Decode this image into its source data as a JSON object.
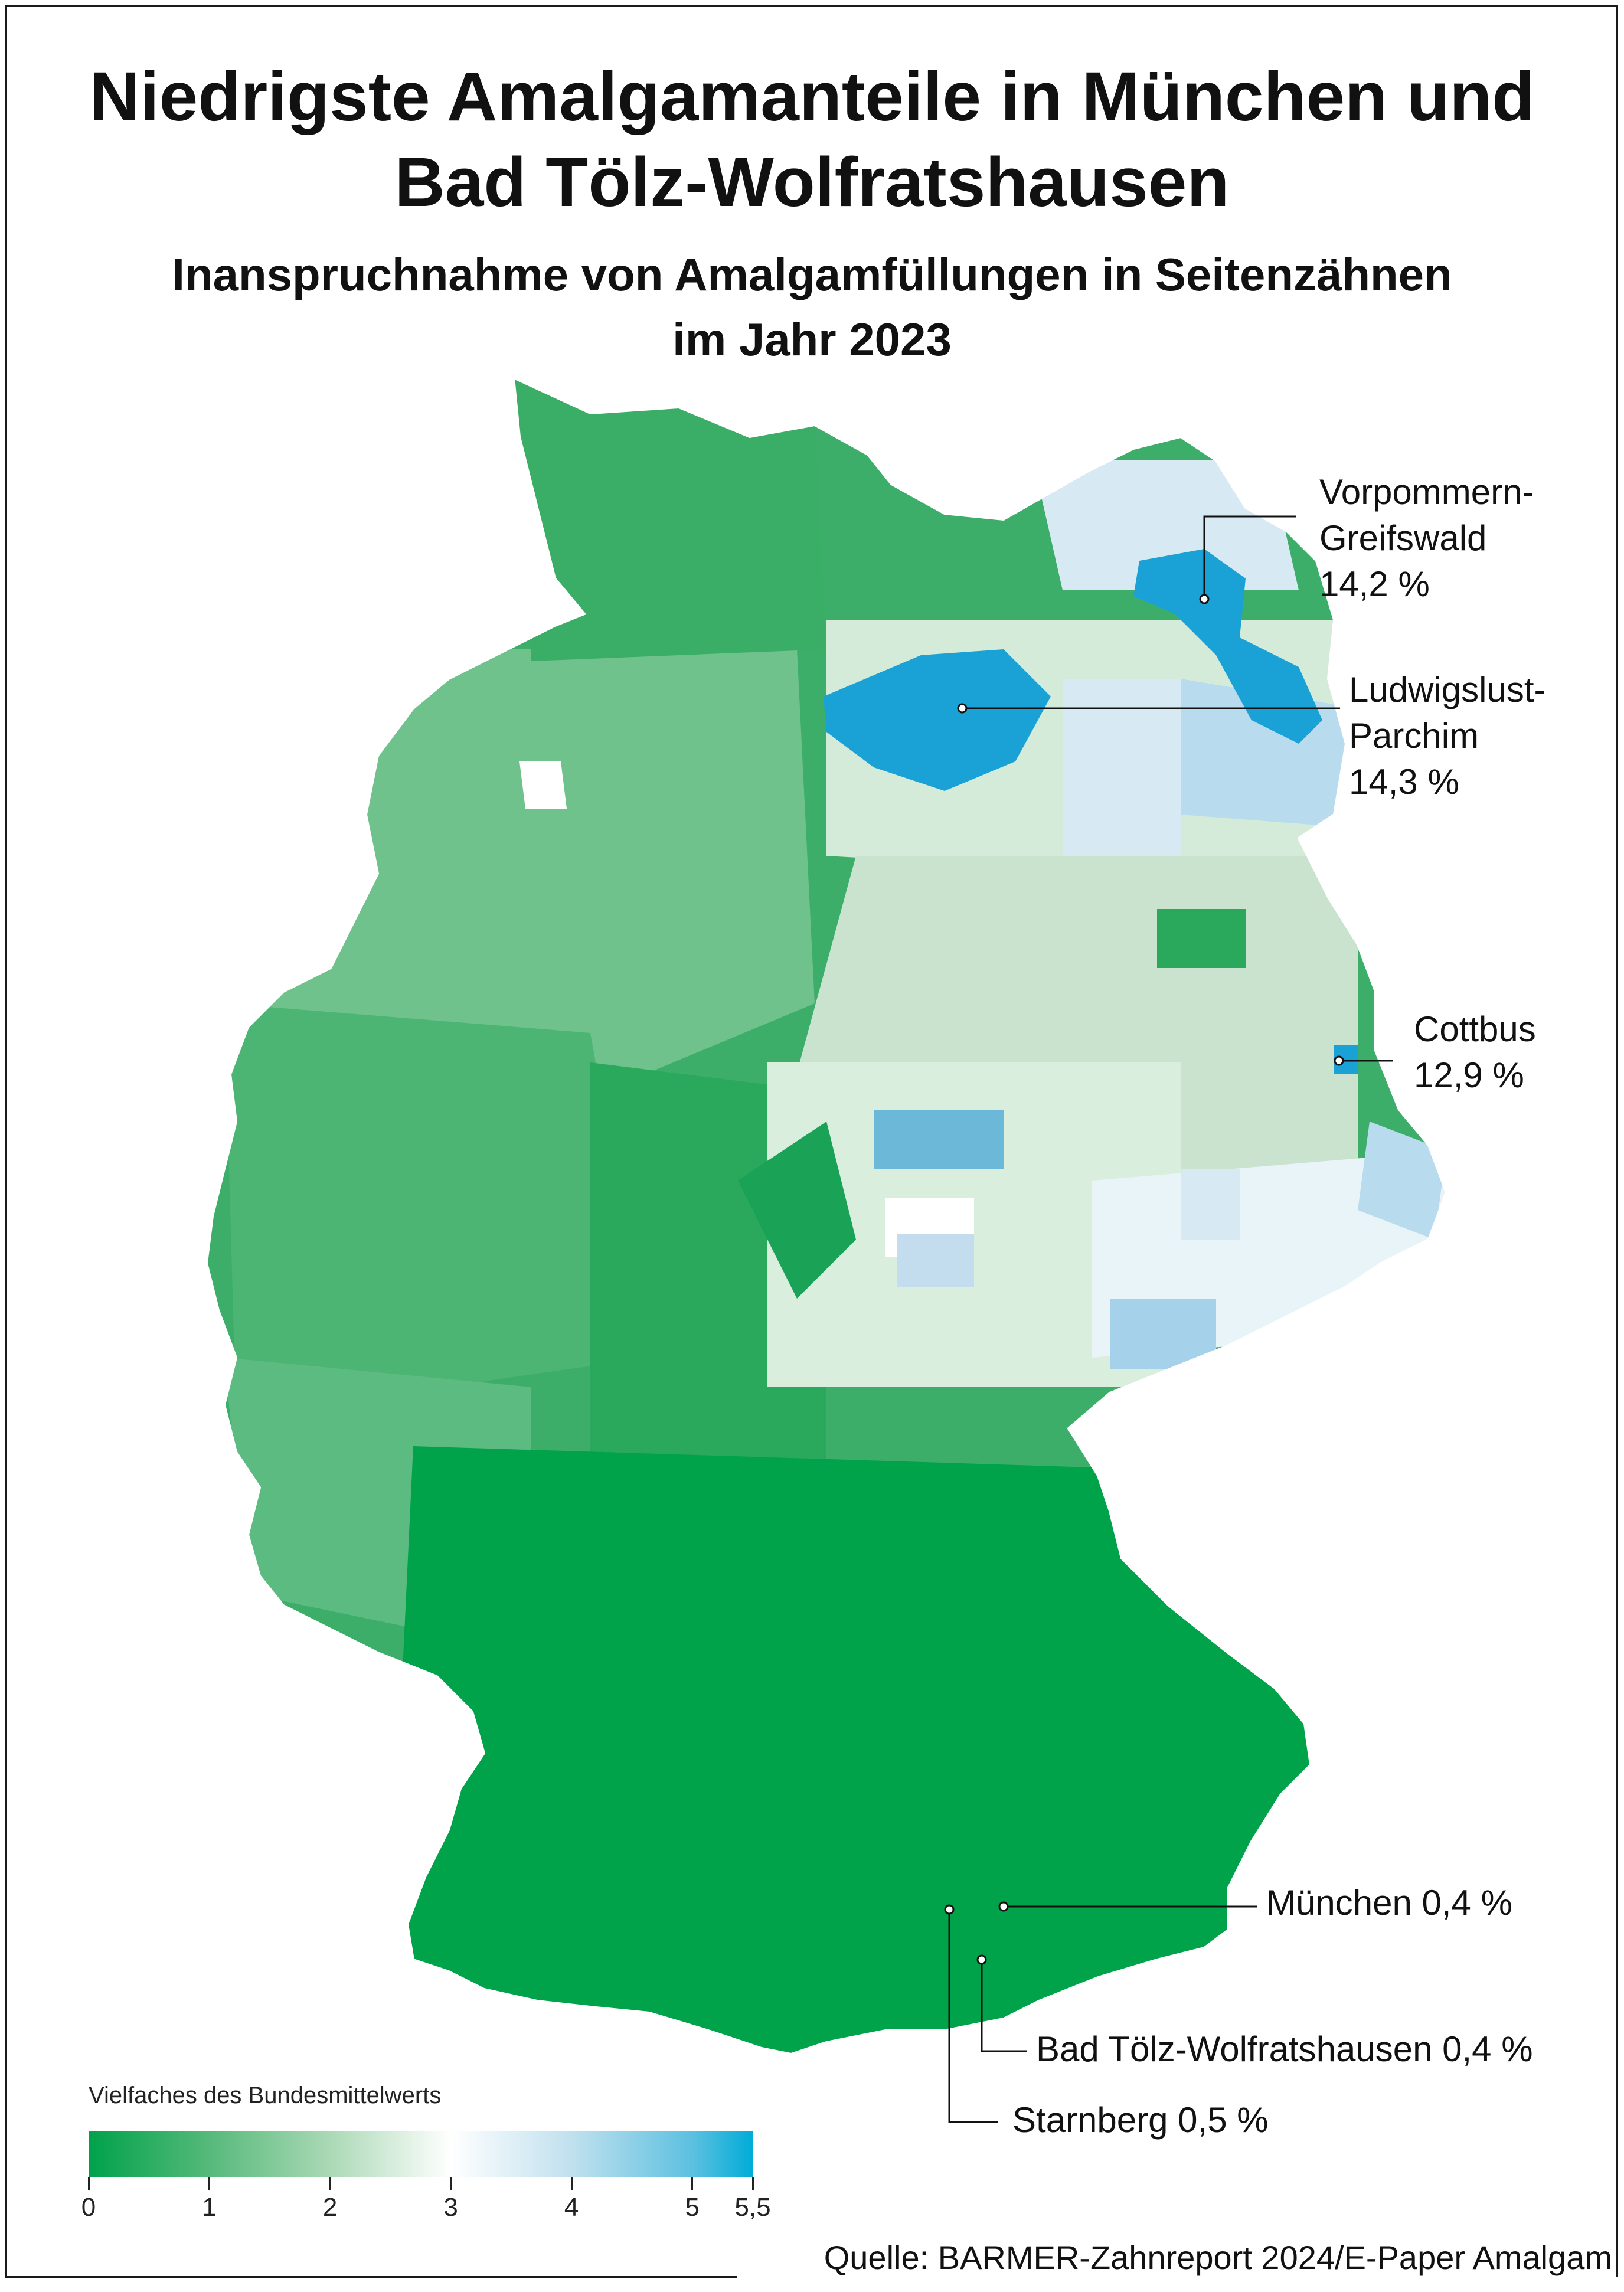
{
  "title": "Niedrigste Amalgamanteile in München und\nBad Tölz-Wolfratshausen",
  "subtitle": "Inanspruchnahme von Amalgamfüllungen in Seitenzähnen\nim Jahr 2023",
  "annotations": [
    {
      "id": "vorpommern",
      "name": "Vorpommern-\nGreifswald",
      "value": "14,2 %"
    },
    {
      "id": "ludwigslust",
      "name": "Ludwigslust-\nParchim",
      "value": "14,3 %"
    },
    {
      "id": "cottbus",
      "name": "Cottbus",
      "value": "12,9 %"
    },
    {
      "id": "muenchen",
      "name": "München",
      "value": "0,4 %"
    },
    {
      "id": "badtoelz",
      "name": "Bad Tölz-Wolfratshausen",
      "value": "0,4 %"
    },
    {
      "id": "starnberg",
      "name": "Starnberg",
      "value": "0,5 %"
    }
  ],
  "legend": {
    "title": "Vielfaches des Bundesmittelwerts",
    "ticks": [
      "0",
      "1",
      "2",
      "3",
      "4",
      "5",
      "5,5"
    ],
    "min": 0,
    "max": 5.5,
    "colors": {
      "low": "#00a24a",
      "mid": "#ffffff",
      "high": "#00acd8"
    }
  },
  "source": "Quelle: BARMER-Zahnreport 2024/E-Paper Amalgam",
  "colors": {
    "green_dark": "#00a24a",
    "green_mid": "#3cae6a",
    "green_light": "#8fcfa3",
    "green_pale": "#d3ebd8",
    "blue_pale": "#d7e9f3",
    "blue_light": "#b8dbee",
    "blue_mid": "#6cb8d8",
    "blue_strong": "#1aa2d6"
  }
}
